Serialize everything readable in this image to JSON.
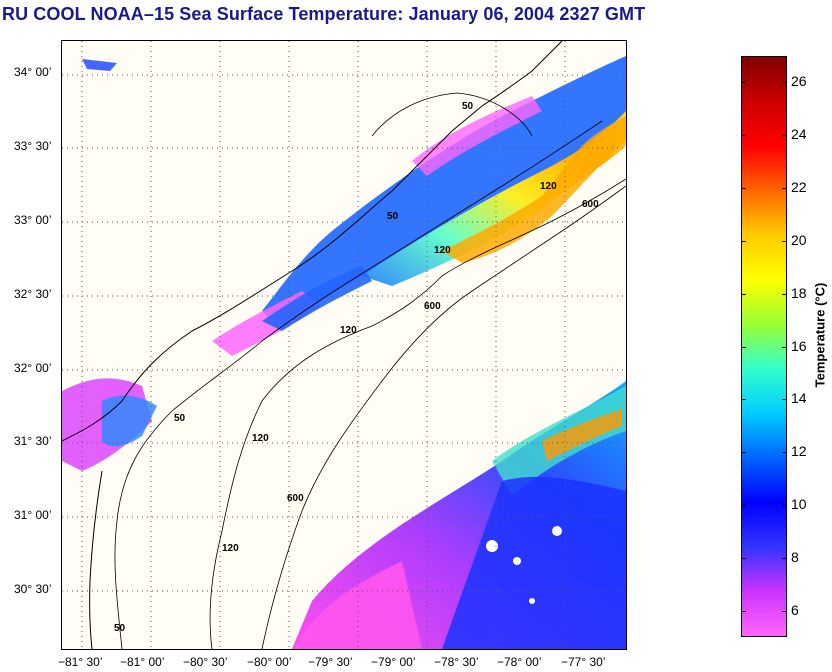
{
  "title": "RU COOL  NOAA–15  Sea Surface Temperature:  January 06, 2004 2327 GMT",
  "map": {
    "lat_labels": [
      "34° 00’",
      "33° 30’",
      "33° 00’",
      "32° 30’",
      "32° 00’",
      "31° 30’",
      "31° 00’",
      "30° 30’"
    ],
    "lon_labels": [
      "−81° 30’",
      "−81° 00’",
      "−80° 30’",
      "−80° 00’",
      "−79° 30’",
      "−79° 00’",
      "−78° 30’",
      "−78° 00’",
      "−77° 30’"
    ],
    "contour_labels": [
      "50",
      "50",
      "50",
      "120",
      "120",
      "120",
      "120",
      "600",
      "600",
      "600",
      "120",
      "50"
    ],
    "colors": {
      "land_background": "#fffdf4",
      "coastline": "#000000",
      "grid": "#555555"
    }
  },
  "colorbar": {
    "title": "Temperature (°C)",
    "ticks": [
      "26",
      "24",
      "22",
      "20",
      "18",
      "16",
      "14",
      "12",
      "10",
      "8",
      "6"
    ],
    "min": 5,
    "max": 27,
    "scale_colors": [
      "#ff66ff",
      "#cc33ff",
      "#3333ff",
      "#0000ff",
      "#0066ff",
      "#00ccff",
      "#33ffcc",
      "#99ff33",
      "#ffff00",
      "#ffcc00",
      "#ff6600",
      "#ff0000",
      "#cc0000",
      "#800000"
    ]
  }
}
